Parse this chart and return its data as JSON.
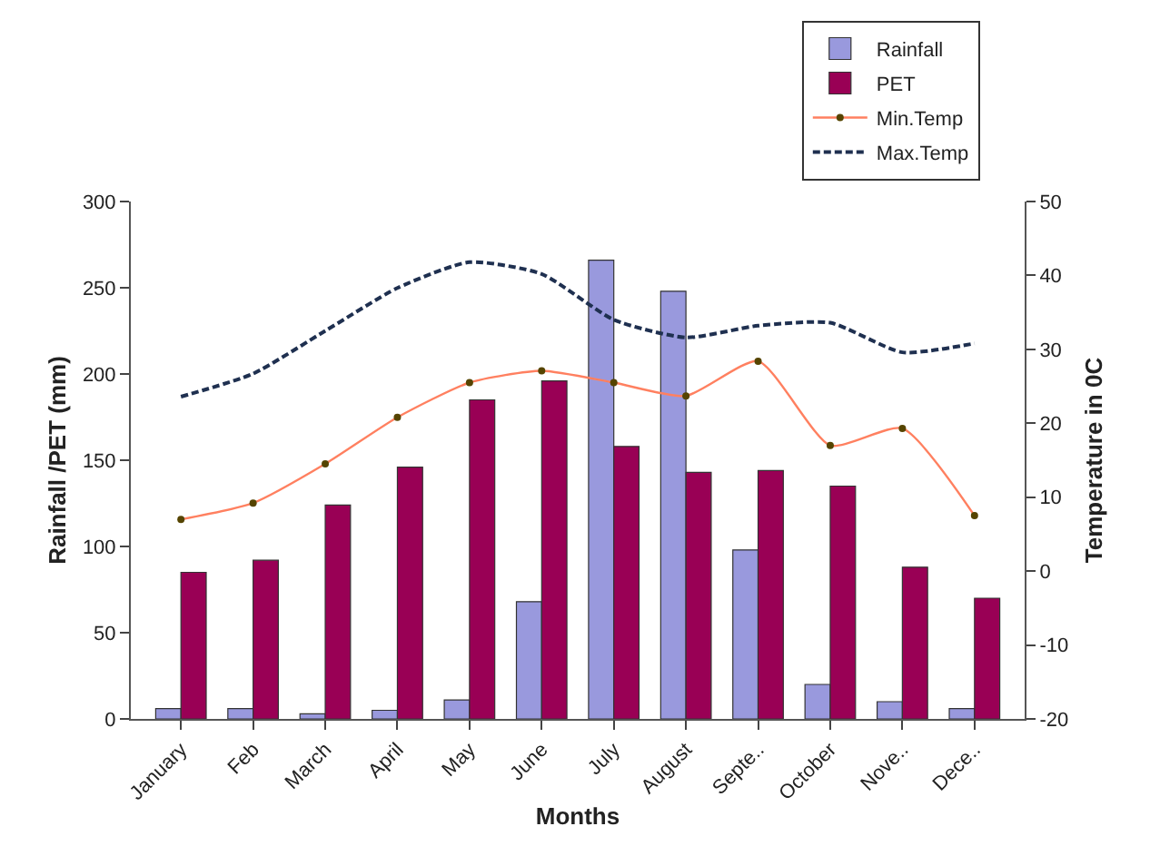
{
  "chart_data": {
    "type": "bar",
    "xlabel": "Months",
    "ylabel": "Rainfall /PET (mm)",
    "y2label": "Temperature in 0C",
    "categories": [
      "January",
      "Feb",
      "March",
      "April",
      "May",
      "June",
      "July",
      "August",
      "Septe..",
      "October",
      "Nove..",
      "Dece.."
    ],
    "series": [
      {
        "name": "Rainfall",
        "color": "#9999dd",
        "values": [
          6,
          6,
          3,
          5,
          11,
          68,
          266,
          248,
          98,
          20,
          10,
          6
        ]
      },
      {
        "name": "PET",
        "color": "#990055",
        "values": [
          85,
          92,
          124,
          146,
          185,
          196,
          158,
          143,
          144,
          135,
          88,
          70
        ]
      },
      {
        "name": "Min.Temp",
        "type": "line",
        "axis": "y2",
        "color": "#ff8060",
        "marker": "circle",
        "line_style": "solid",
        "values": [
          7,
          9.2,
          14.5,
          20.8,
          25.5,
          27.1,
          25.5,
          23.7,
          28.4,
          17,
          19.3,
          7.5
        ]
      },
      {
        "name": "Max.Temp",
        "type": "line",
        "axis": "y2",
        "color": "#1f3050",
        "marker": "none",
        "line_style": "dashed",
        "values": [
          23.6,
          26.7,
          32.5,
          38.3,
          41.8,
          40.2,
          34,
          31.6,
          33.2,
          33.6,
          29.6,
          30.8
        ]
      }
    ],
    "ylim": [
      0,
      300
    ],
    "yticks": [
      0,
      50,
      100,
      150,
      200,
      250,
      300
    ],
    "y2lim": [
      -20,
      50
    ],
    "y2ticks": [
      -20,
      -10,
      0,
      10,
      20,
      30,
      40,
      50
    ],
    "grid": false,
    "legend": "top right"
  }
}
